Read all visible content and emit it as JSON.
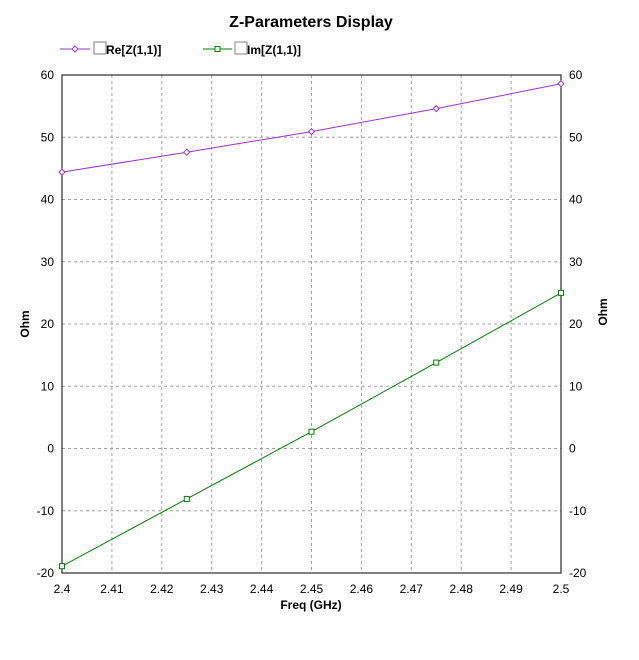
{
  "chart_data": {
    "type": "line",
    "title": "Z-Parameters Display",
    "xlabel": "Freq (GHz)",
    "ylabel_left": "Ohm",
    "ylabel_right": "Ohm",
    "xlim": [
      2.4,
      2.5
    ],
    "ylim": [
      -20,
      60
    ],
    "x_ticks": [
      "2.4",
      "2.41",
      "2.42",
      "2.43",
      "2.44",
      "2.45",
      "2.46",
      "2.47",
      "2.48",
      "2.49",
      "2.5"
    ],
    "y_ticks": [
      "-20",
      "-10",
      "0",
      "10",
      "20",
      "30",
      "40",
      "50",
      "60"
    ],
    "grid": true,
    "legend_position": "top-left",
    "series": [
      {
        "name": "Re[Z(1,1)]",
        "color": "#9933cc",
        "marker": "diamond",
        "x": [
          2.4,
          2.425,
          2.45,
          2.475,
          2.5
        ],
        "y": [
          44.4,
          47.6,
          50.9,
          54.6,
          58.6
        ],
        "marker_x": [
          2.4,
          2.425,
          2.45,
          2.475,
          2.5
        ]
      },
      {
        "name": "Im[Z(1,1)]",
        "color": "#008000",
        "marker": "square",
        "x": [
          2.4,
          2.425,
          2.45,
          2.475,
          2.5
        ],
        "y": [
          -18.9,
          -8.1,
          2.7,
          13.8,
          25.0
        ],
        "marker_x": [
          2.4,
          2.425,
          2.45,
          2.475,
          2.5
        ]
      }
    ]
  }
}
